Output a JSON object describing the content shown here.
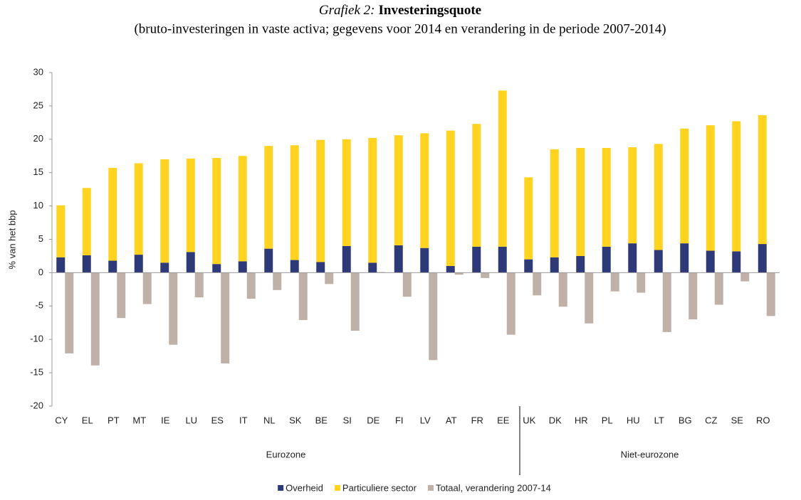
{
  "chart_data": {
    "type": "bar",
    "title_prefix": "Grafiek 2:",
    "title": "Investeringsquote",
    "subtitle": "(bruto-investeringen in vaste activa; gegevens voor 2014 en verandering in de periode 2007-2014)",
    "y_label": "% van het bbp",
    "categories": [
      "CY",
      "EL",
      "PT",
      "MT",
      "IE",
      "LU",
      "ES",
      "IT",
      "NL",
      "SK",
      "BE",
      "SI",
      "DE",
      "FI",
      "LV",
      "AT",
      "FR",
      "EE",
      "UK",
      "DK",
      "HR",
      "PL",
      "HU",
      "LT",
      "BG",
      "CZ",
      "SE",
      "RO"
    ],
    "groups": [
      {
        "name": "Eurozone",
        "first": "CY",
        "last": "EE"
      },
      {
        "name": "Niet-eurozone",
        "first": "UK",
        "last": "RO"
      }
    ],
    "series": [
      {
        "name": "Overheid",
        "color": "#2e3a78",
        "stack": "a",
        "values": [
          2.3,
          2.6,
          1.8,
          2.7,
          1.5,
          3.1,
          1.3,
          1.7,
          3.6,
          1.9,
          1.6,
          4.0,
          1.5,
          4.1,
          3.7,
          1.0,
          3.9,
          3.9,
          2.0,
          2.3,
          2.5,
          3.9,
          4.4,
          3.4,
          4.4,
          3.3,
          3.2,
          4.3
        ]
      },
      {
        "name": "Particuliere sector",
        "color": "#ffd320",
        "stack": "a",
        "values": [
          7.8,
          10.1,
          13.9,
          13.7,
          15.5,
          14.0,
          15.9,
          15.8,
          15.4,
          17.2,
          18.3,
          16.0,
          18.7,
          16.5,
          17.2,
          20.3,
          18.4,
          23.4,
          12.3,
          16.2,
          16.2,
          14.8,
          14.4,
          15.9,
          17.2,
          18.8,
          19.5,
          19.3
        ]
      },
      {
        "name": "Totaal, verandering 2007-14",
        "color": "#bfb0a8",
        "stack": "b",
        "values": [
          -12.1,
          -13.9,
          -6.8,
          -4.7,
          -10.8,
          -3.7,
          -13.6,
          -3.9,
          -2.6,
          -7.1,
          -1.7,
          -8.7,
          0.1,
          -3.6,
          -13.1,
          -0.3,
          -0.8,
          -9.3,
          -3.4,
          -5.1,
          -7.6,
          -2.8,
          -3.0,
          -8.9,
          -7.0,
          -4.8,
          -1.3,
          -6.5
        ]
      }
    ],
    "ylim": [
      -20,
      30
    ],
    "yticks": [
      -20,
      -15,
      -10,
      -5,
      0,
      5,
      10,
      15,
      20,
      25,
      30
    ],
    "grid": false
  }
}
